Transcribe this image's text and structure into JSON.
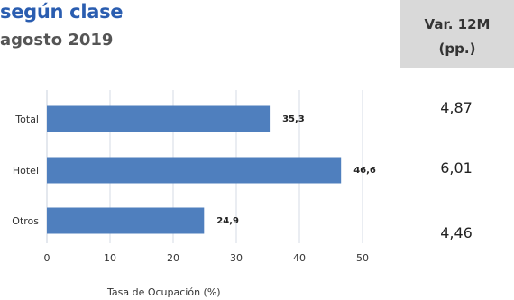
{
  "title": {
    "line1": "según clase",
    "line2": "agosto 2019"
  },
  "variation": {
    "header_line1": "Var. 12M",
    "header_line2": "(pp.)",
    "values": [
      "4,87",
      "6,01",
      "4,46"
    ]
  },
  "chart_data": {
    "type": "bar",
    "orientation": "horizontal",
    "categories": [
      "Total",
      "Hotel",
      "Otros"
    ],
    "values": [
      35.3,
      46.6,
      24.9
    ],
    "value_labels": [
      "35,3",
      "46,6",
      "24,9"
    ],
    "xlabel": "Tasa de Ocupación (%)",
    "xlim": [
      0,
      50
    ],
    "xticks": [
      0,
      10,
      20,
      30,
      40,
      50
    ],
    "grid": "vertical",
    "bar_color": "#4f7fbe"
  }
}
